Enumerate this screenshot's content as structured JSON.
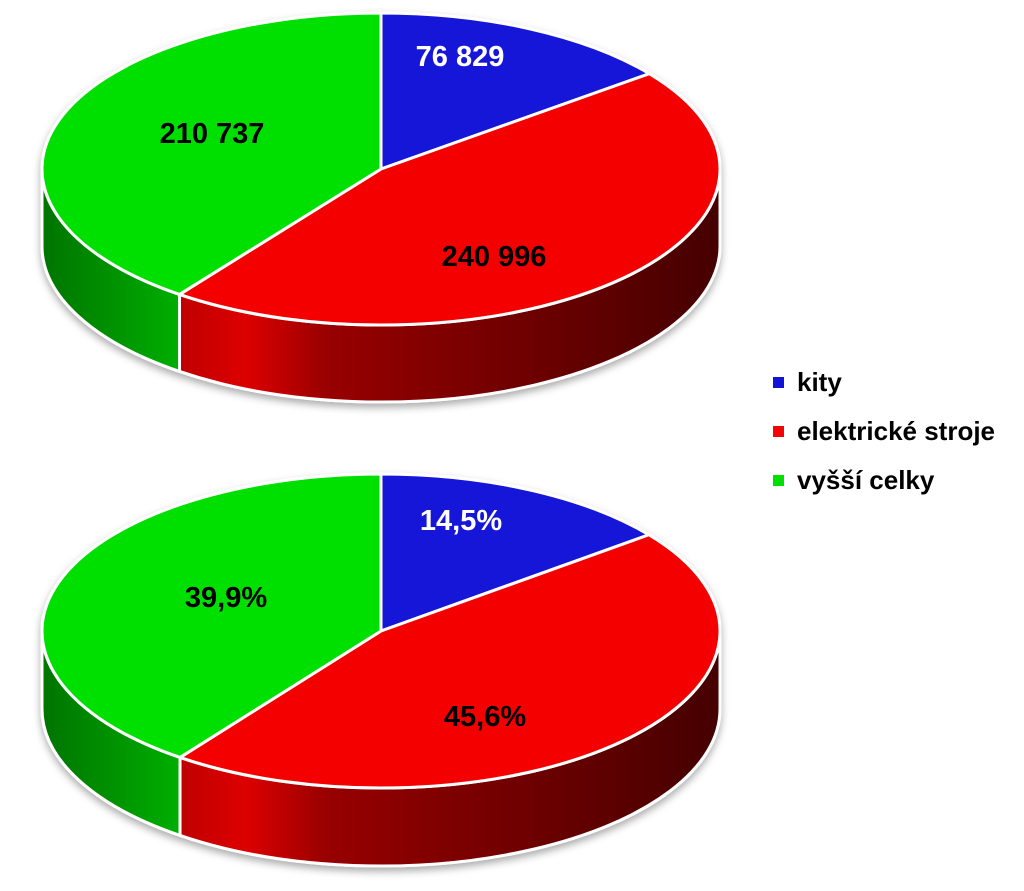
{
  "legend": {
    "items": [
      {
        "label": "kity",
        "color": "#1212d8"
      },
      {
        "label": "elektrické stroje",
        "color": "#f50505"
      },
      {
        "label": "vyšší celky",
        "color": "#00e000"
      }
    ],
    "position": "right-middle"
  },
  "chart_data": [
    {
      "type": "pie",
      "style": "3d",
      "title": "",
      "categories": [
        "kity",
        "elektrické stroje",
        "vyšší celky"
      ],
      "values": [
        76829,
        240996,
        210737
      ],
      "colors": [
        "#1212d8",
        "#f50505",
        "#00e000"
      ],
      "data_labels": [
        {
          "text": "76 829",
          "color": "#ffffff"
        },
        {
          "text": "240 996",
          "color": "#000000"
        },
        {
          "text": "210 737",
          "color": "#000000"
        }
      ],
      "start_angle_deg": 0,
      "legend_position": "right"
    },
    {
      "type": "pie",
      "style": "3d",
      "title": "",
      "categories": [
        "kity",
        "elektrické stroje",
        "vyšší celky"
      ],
      "values": [
        14.5,
        45.6,
        39.9
      ],
      "colors": [
        "#1212d8",
        "#f50505",
        "#00e000"
      ],
      "data_labels": [
        {
          "text": "14,5%",
          "color": "#ffffff"
        },
        {
          "text": "45,6%",
          "color": "#000000"
        },
        {
          "text": "39,9%",
          "color": "#000000"
        }
      ],
      "start_angle_deg": 0,
      "legend_position": "right"
    }
  ]
}
